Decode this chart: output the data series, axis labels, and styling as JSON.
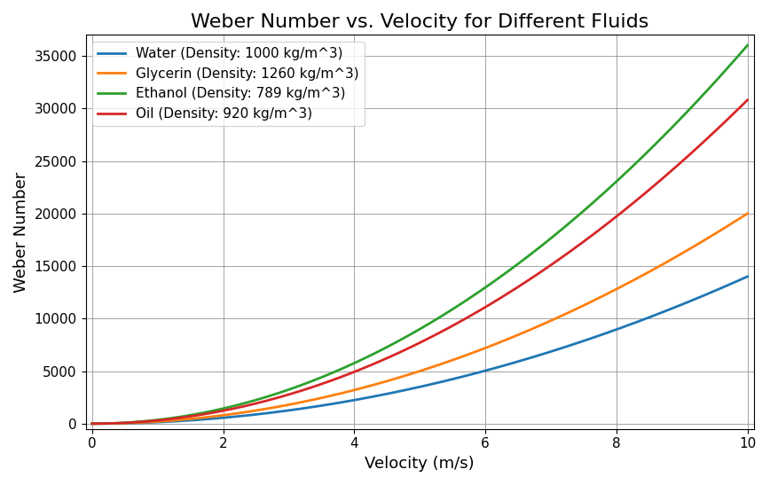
{
  "title": "Weber Number vs. Velocity for Different Fluids",
  "xlabel": "Velocity (m/s)",
  "ylabel": "Weber Number",
  "fluids": [
    {
      "name": "Water (Density: 1000 kg/m^3)",
      "density": 1000,
      "scale": 0.14,
      "color": "#1f77b4"
    },
    {
      "name": "Glycerin (Density: 1260 kg/m^3)",
      "density": 1260,
      "scale": 0.15873,
      "color": "#ff7f0e"
    },
    {
      "name": "Ethanol (Density: 789 kg/m^3)",
      "density": 789,
      "scale": 0.4563,
      "color": "#2ca02c"
    },
    {
      "name": "Oil (Density: 920 kg/m^3)",
      "density": 920,
      "scale": 0.3348,
      "color": "#d62728"
    }
  ],
  "v_min": 0,
  "v_max": 10,
  "v_points": 300,
  "ylim": [
    -500,
    37000
  ],
  "xlim": [
    -0.1,
    10.1
  ],
  "grid": true,
  "legend_loc": "upper left",
  "title_fontsize": 16,
  "label_fontsize": 13,
  "tick_fontsize": 11,
  "legend_fontsize": 11,
  "linewidth": 2
}
